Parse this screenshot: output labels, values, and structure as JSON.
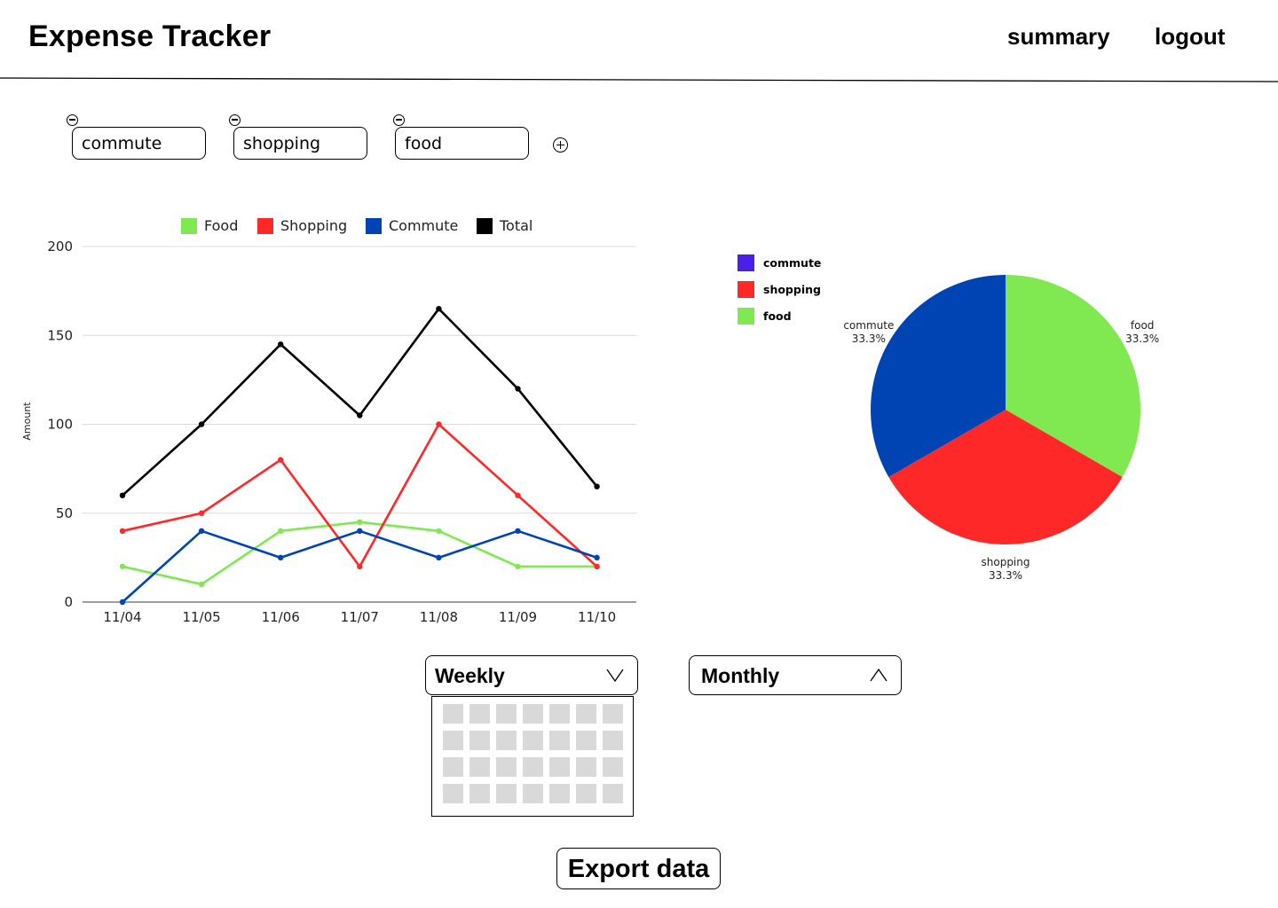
{
  "header": {
    "title": "Expense Tracker",
    "nav": {
      "summary": "summary",
      "logout": "logout"
    }
  },
  "categories": [
    {
      "name": "commute"
    },
    {
      "name": "shopping"
    },
    {
      "name": "food"
    }
  ],
  "icons": {
    "remove": "minus-circle-icon",
    "add": "plus-circle-icon",
    "dropdown_open": "chevron-down-icon",
    "dropdown_closed": "chevron-up-icon"
  },
  "colors": {
    "food": "#80e850",
    "shopping": "#ff2828",
    "commute": "#0044b4",
    "total": "#000000",
    "commute_pie_legend": "#4820e8",
    "calendar_cell": "#d9d9d9"
  },
  "chart_data": [
    {
      "type": "line",
      "title": "",
      "xlabel": "",
      "ylabel": "Amount",
      "categories": [
        "11/04",
        "11/05",
        "11/06",
        "11/07",
        "11/08",
        "11/09",
        "11/10"
      ],
      "ylim": [
        0,
        200
      ],
      "yticks": [
        0,
        50,
        100,
        150,
        200
      ],
      "grid": true,
      "legend_position": "top",
      "series": [
        {
          "name": "Food",
          "color": "#80e850",
          "values": [
            20,
            10,
            40,
            45,
            40,
            20,
            20
          ]
        },
        {
          "name": "Shopping",
          "color": "#ff2828",
          "values": [
            40,
            50,
            80,
            20,
            100,
            60,
            20
          ]
        },
        {
          "name": "Commute",
          "color": "#0044b4",
          "values": [
            0,
            40,
            25,
            40,
            25,
            40,
            25
          ]
        },
        {
          "name": "Total",
          "color": "#000000",
          "values": [
            60,
            100,
            145,
            105,
            165,
            120,
            65
          ]
        }
      ]
    },
    {
      "type": "pie",
      "title": "",
      "legend_position": "top-left",
      "legend": [
        {
          "label": "commute",
          "color": "#4820e8"
        },
        {
          "label": "shopping",
          "color": "#ff2828"
        },
        {
          "label": "food",
          "color": "#80e850"
        }
      ],
      "slices": [
        {
          "label": "food",
          "value": 33.3,
          "pct_label": "33.3%",
          "color": "#80e850"
        },
        {
          "label": "shopping",
          "value": 33.3,
          "pct_label": "33.3%",
          "color": "#ff2828"
        },
        {
          "label": "commute",
          "value": 33.3,
          "pct_label": "33.3%",
          "color": "#0044b4"
        }
      ]
    }
  ],
  "period": {
    "weekly_label": "Weekly",
    "monthly_label": "Monthly",
    "calendar": {
      "rows": 4,
      "cols": 7
    }
  },
  "export_label": "Export data"
}
